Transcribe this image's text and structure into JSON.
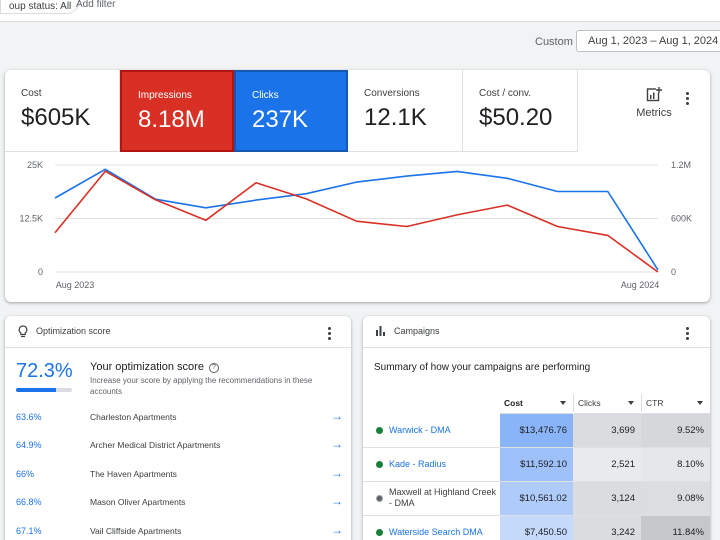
{
  "filters": {
    "status": "oup status: All",
    "add_filter": "Add filter"
  },
  "date": {
    "preset": "Custom",
    "range": "Aug 1, 2023 – Aug 1, 2024"
  },
  "metrics": [
    {
      "label": "Cost",
      "value": "$605K"
    },
    {
      "label": "Impressions",
      "value": "8.18M",
      "color": "#d93025"
    },
    {
      "label": "Clicks",
      "value": "237K",
      "color": "#1a73e8"
    },
    {
      "label": "Conversions",
      "value": "12.1K"
    },
    {
      "label": "Cost / conv.",
      "value": "$50.20"
    }
  ],
  "metrics_button": {
    "label": "Metrics",
    "icon": "chart-plus-icon"
  },
  "chart_data": {
    "type": "line",
    "x_labels": [
      "Aug 2023",
      "Aug 2024"
    ],
    "x": [
      "Aug 2023",
      "Sep 2023",
      "Oct 2023",
      "Nov 2023",
      "Dec 2023",
      "Jan 2024",
      "Feb 2024",
      "Mar 2024",
      "Apr 2024",
      "May 2024",
      "Jun 2024",
      "Jul 2024",
      "Aug 2024"
    ],
    "left_axis": {
      "ticks": [
        "25K",
        "12.5K",
        "0"
      ],
      "ylim": [
        0,
        25000
      ]
    },
    "right_axis": {
      "ticks": [
        "1.2M",
        "600K",
        "0"
      ],
      "ylim": [
        0,
        1200000
      ]
    },
    "series": [
      {
        "name": "Clicks",
        "color": "#1a73e8",
        "axis": "left",
        "values": [
          17300,
          24000,
          17000,
          15000,
          16800,
          18300,
          21000,
          22400,
          23500,
          21900,
          18800,
          18800,
          500
        ]
      },
      {
        "name": "Impressions",
        "color": "#d93025",
        "axis": "right",
        "values": [
          440000,
          1130000,
          810000,
          580000,
          1000000,
          820000,
          570000,
          510000,
          640000,
          750000,
          510000,
          410000,
          0
        ]
      }
    ],
    "grid": true
  },
  "optimization": {
    "title": "Optimization score",
    "score": "72.3%",
    "score_fraction": 0.723,
    "heading": "Your optimization score",
    "description": "Increase your score by applying the recommendations in these accounts",
    "accounts": [
      {
        "pct": "63.6%",
        "name": "Charleston Apartments"
      },
      {
        "pct": "64.9%",
        "name": "Archer Medical District Apartments"
      },
      {
        "pct": "66%",
        "name": "The Haven Apartments"
      },
      {
        "pct": "66.8%",
        "name": "Mason Oliver Apartments"
      },
      {
        "pct": "67.1%",
        "name": "Vail Cliffside Apartments"
      }
    ]
  },
  "campaigns": {
    "title": "Campaigns",
    "subtitle": "Summary of how your campaigns are performing",
    "columns": [
      "Cost",
      "Clicks",
      "CTR"
    ],
    "rows": [
      {
        "name": "Warwick - DMA",
        "cost": "$13,476.76",
        "clicks": "3,699",
        "ctr": "9.52%",
        "status": "enabled"
      },
      {
        "name": "Kade - Radius",
        "cost": "$11,592.10",
        "clicks": "2,521",
        "ctr": "8.10%",
        "status": "enabled"
      },
      {
        "name": "Maxwell at Highland Creek - DMA",
        "cost": "$10,561.02",
        "clicks": "3,124",
        "ctr": "9.08%",
        "status": "other"
      },
      {
        "name": "Waterside Search DMA",
        "cost": "$7,450.50",
        "clicks": "3,242",
        "ctr": "11.84%",
        "status": "enabled"
      }
    ]
  }
}
